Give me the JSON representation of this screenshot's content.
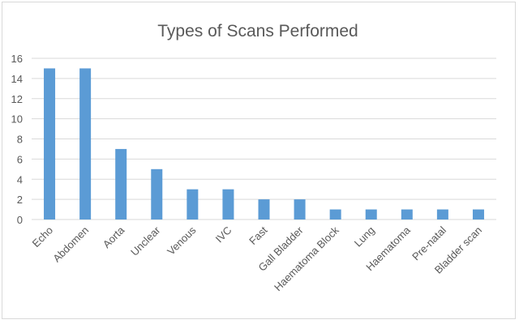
{
  "chart_data": {
    "type": "bar",
    "title": "Types of Scans Performed",
    "xlabel": "",
    "ylabel": "",
    "categories": [
      "Echo",
      "Abdomen",
      "Aorta",
      "Unclear",
      "Venous",
      "IVC",
      "Fast",
      "Gall Bladder",
      "Haematoma Block",
      "Lung",
      "Haematoma",
      "Pre-natal",
      "Bladder scan"
    ],
    "values": [
      15,
      15,
      7,
      5,
      3,
      3,
      2,
      2,
      1,
      1,
      1,
      1,
      1
    ],
    "ylim": [
      0,
      16
    ],
    "yticks": [
      0,
      2,
      4,
      6,
      8,
      10,
      12,
      14,
      16
    ],
    "grid": true,
    "legend": "none",
    "bar_color": "#5b9bd5"
  }
}
